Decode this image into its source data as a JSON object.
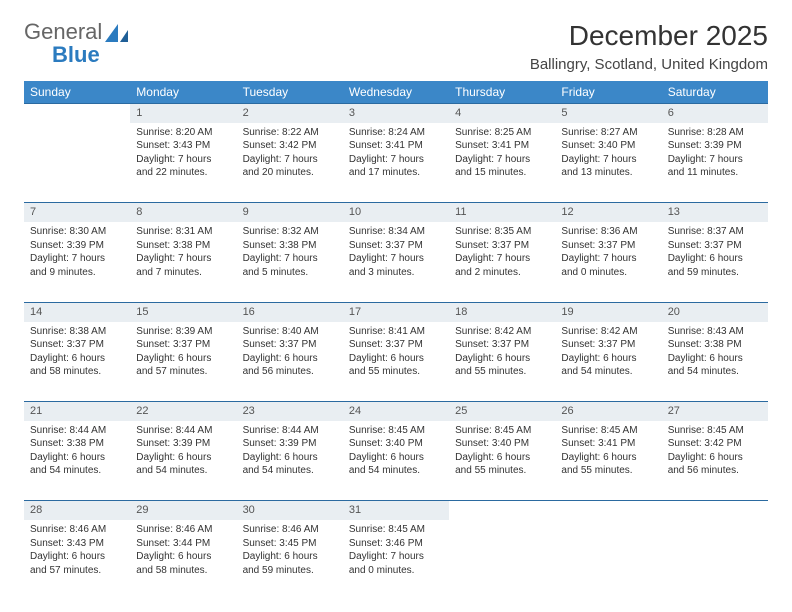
{
  "colors": {
    "header_bg": "#3b87c8",
    "header_text": "#ffffff",
    "daynum_bg": "#e9eef2",
    "daynum_text": "#555555",
    "row_border": "#2b6aa0",
    "body_text": "#333333",
    "logo_gray": "#666666",
    "logo_blue": "#2b7bbf",
    "page_bg": "#ffffff"
  },
  "typography": {
    "title_fontsize": 28,
    "location_fontsize": 15,
    "header_fontsize": 12,
    "cell_fontsize": 10,
    "daynum_fontsize": 11,
    "font_family": "Arial"
  },
  "logo": {
    "line1": "General",
    "line2": "Blue"
  },
  "title": "December 2025",
  "location": "Ballingry, Scotland, United Kingdom",
  "day_headers": [
    "Sunday",
    "Monday",
    "Tuesday",
    "Wednesday",
    "Thursday",
    "Friday",
    "Saturday"
  ],
  "weeks": [
    {
      "nums": [
        "",
        "1",
        "2",
        "3",
        "4",
        "5",
        "6"
      ],
      "cells": [
        null,
        {
          "sunrise": "Sunrise: 8:20 AM",
          "sunset": "Sunset: 3:43 PM",
          "daylight": "Daylight: 7 hours and 22 minutes."
        },
        {
          "sunrise": "Sunrise: 8:22 AM",
          "sunset": "Sunset: 3:42 PM",
          "daylight": "Daylight: 7 hours and 20 minutes."
        },
        {
          "sunrise": "Sunrise: 8:24 AM",
          "sunset": "Sunset: 3:41 PM",
          "daylight": "Daylight: 7 hours and 17 minutes."
        },
        {
          "sunrise": "Sunrise: 8:25 AM",
          "sunset": "Sunset: 3:41 PM",
          "daylight": "Daylight: 7 hours and 15 minutes."
        },
        {
          "sunrise": "Sunrise: 8:27 AM",
          "sunset": "Sunset: 3:40 PM",
          "daylight": "Daylight: 7 hours and 13 minutes."
        },
        {
          "sunrise": "Sunrise: 8:28 AM",
          "sunset": "Sunset: 3:39 PM",
          "daylight": "Daylight: 7 hours and 11 minutes."
        }
      ]
    },
    {
      "nums": [
        "7",
        "8",
        "9",
        "10",
        "11",
        "12",
        "13"
      ],
      "cells": [
        {
          "sunrise": "Sunrise: 8:30 AM",
          "sunset": "Sunset: 3:39 PM",
          "daylight": "Daylight: 7 hours and 9 minutes."
        },
        {
          "sunrise": "Sunrise: 8:31 AM",
          "sunset": "Sunset: 3:38 PM",
          "daylight": "Daylight: 7 hours and 7 minutes."
        },
        {
          "sunrise": "Sunrise: 8:32 AM",
          "sunset": "Sunset: 3:38 PM",
          "daylight": "Daylight: 7 hours and 5 minutes."
        },
        {
          "sunrise": "Sunrise: 8:34 AM",
          "sunset": "Sunset: 3:37 PM",
          "daylight": "Daylight: 7 hours and 3 minutes."
        },
        {
          "sunrise": "Sunrise: 8:35 AM",
          "sunset": "Sunset: 3:37 PM",
          "daylight": "Daylight: 7 hours and 2 minutes."
        },
        {
          "sunrise": "Sunrise: 8:36 AM",
          "sunset": "Sunset: 3:37 PM",
          "daylight": "Daylight: 7 hours and 0 minutes."
        },
        {
          "sunrise": "Sunrise: 8:37 AM",
          "sunset": "Sunset: 3:37 PM",
          "daylight": "Daylight: 6 hours and 59 minutes."
        }
      ]
    },
    {
      "nums": [
        "14",
        "15",
        "16",
        "17",
        "18",
        "19",
        "20"
      ],
      "cells": [
        {
          "sunrise": "Sunrise: 8:38 AM",
          "sunset": "Sunset: 3:37 PM",
          "daylight": "Daylight: 6 hours and 58 minutes."
        },
        {
          "sunrise": "Sunrise: 8:39 AM",
          "sunset": "Sunset: 3:37 PM",
          "daylight": "Daylight: 6 hours and 57 minutes."
        },
        {
          "sunrise": "Sunrise: 8:40 AM",
          "sunset": "Sunset: 3:37 PM",
          "daylight": "Daylight: 6 hours and 56 minutes."
        },
        {
          "sunrise": "Sunrise: 8:41 AM",
          "sunset": "Sunset: 3:37 PM",
          "daylight": "Daylight: 6 hours and 55 minutes."
        },
        {
          "sunrise": "Sunrise: 8:42 AM",
          "sunset": "Sunset: 3:37 PM",
          "daylight": "Daylight: 6 hours and 55 minutes."
        },
        {
          "sunrise": "Sunrise: 8:42 AM",
          "sunset": "Sunset: 3:37 PM",
          "daylight": "Daylight: 6 hours and 54 minutes."
        },
        {
          "sunrise": "Sunrise: 8:43 AM",
          "sunset": "Sunset: 3:38 PM",
          "daylight": "Daylight: 6 hours and 54 minutes."
        }
      ]
    },
    {
      "nums": [
        "21",
        "22",
        "23",
        "24",
        "25",
        "26",
        "27"
      ],
      "cells": [
        {
          "sunrise": "Sunrise: 8:44 AM",
          "sunset": "Sunset: 3:38 PM",
          "daylight": "Daylight: 6 hours and 54 minutes."
        },
        {
          "sunrise": "Sunrise: 8:44 AM",
          "sunset": "Sunset: 3:39 PM",
          "daylight": "Daylight: 6 hours and 54 minutes."
        },
        {
          "sunrise": "Sunrise: 8:44 AM",
          "sunset": "Sunset: 3:39 PM",
          "daylight": "Daylight: 6 hours and 54 minutes."
        },
        {
          "sunrise": "Sunrise: 8:45 AM",
          "sunset": "Sunset: 3:40 PM",
          "daylight": "Daylight: 6 hours and 54 minutes."
        },
        {
          "sunrise": "Sunrise: 8:45 AM",
          "sunset": "Sunset: 3:40 PM",
          "daylight": "Daylight: 6 hours and 55 minutes."
        },
        {
          "sunrise": "Sunrise: 8:45 AM",
          "sunset": "Sunset: 3:41 PM",
          "daylight": "Daylight: 6 hours and 55 minutes."
        },
        {
          "sunrise": "Sunrise: 8:45 AM",
          "sunset": "Sunset: 3:42 PM",
          "daylight": "Daylight: 6 hours and 56 minutes."
        }
      ]
    },
    {
      "nums": [
        "28",
        "29",
        "30",
        "31",
        "",
        "",
        ""
      ],
      "cells": [
        {
          "sunrise": "Sunrise: 8:46 AM",
          "sunset": "Sunset: 3:43 PM",
          "daylight": "Daylight: 6 hours and 57 minutes."
        },
        {
          "sunrise": "Sunrise: 8:46 AM",
          "sunset": "Sunset: 3:44 PM",
          "daylight": "Daylight: 6 hours and 58 minutes."
        },
        {
          "sunrise": "Sunrise: 8:46 AM",
          "sunset": "Sunset: 3:45 PM",
          "daylight": "Daylight: 6 hours and 59 minutes."
        },
        {
          "sunrise": "Sunrise: 8:45 AM",
          "sunset": "Sunset: 3:46 PM",
          "daylight": "Daylight: 7 hours and 0 minutes."
        },
        null,
        null,
        null
      ]
    }
  ]
}
